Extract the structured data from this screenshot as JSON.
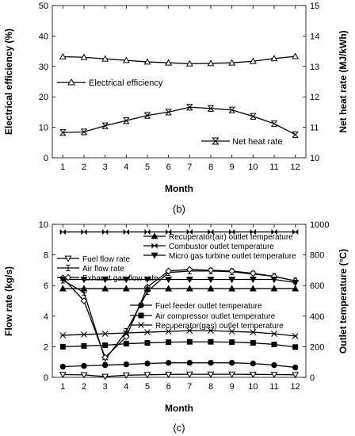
{
  "chart_data": [
    {
      "type": "line",
      "caption": "(b)",
      "xlabel": "Month",
      "ylabel": "Electrical efficiency (%)",
      "ylabel_right": "Net heat rate (MJ/kWh)",
      "x": [
        1,
        2,
        3,
        4,
        5,
        6,
        7,
        8,
        9,
        10,
        11,
        12
      ],
      "xlim": [
        0.5,
        12.5
      ],
      "ylim": [
        0,
        50
      ],
      "ylim_right": [
        10,
        15
      ],
      "yticks": [
        0,
        10,
        20,
        30,
        40,
        50
      ],
      "yticks_right": [
        10,
        11,
        12,
        13,
        14,
        15
      ],
      "grid": false,
      "series": [
        {
          "name": "Electrical efficiency",
          "axis": "left",
          "marker": "triangle-up-open",
          "values": [
            33.2,
            33.0,
            32.5,
            32.0,
            31.5,
            31.2,
            30.9,
            31.0,
            31.2,
            31.7,
            32.6,
            33.3
          ]
        },
        {
          "name": "Net heat rate",
          "axis": "right",
          "marker": "x-bar",
          "values": [
            10.83,
            10.85,
            11.05,
            11.22,
            11.39,
            11.5,
            11.66,
            11.62,
            11.57,
            11.36,
            11.12,
            10.76
          ]
        }
      ]
    },
    {
      "type": "line",
      "caption": "(c)",
      "xlabel": "Month",
      "ylabel": "Flow rate (kg/s)",
      "ylabel_right": "Outlet temperature (°C)",
      "x": [
        1,
        2,
        3,
        4,
        5,
        6,
        7,
        8,
        9,
        10,
        11,
        12
      ],
      "xlim": [
        0.5,
        12.5
      ],
      "ylim": [
        0,
        10
      ],
      "ylim_right": [
        0,
        1000
      ],
      "yticks": [
        0,
        2,
        4,
        6,
        8,
        10
      ],
      "yticks_right": [
        0,
        200,
        400,
        600,
        800,
        1000
      ],
      "grid": false,
      "series": [
        {
          "name": "Fuel flow rate",
          "axis": "left",
          "marker": "triangle-down-open",
          "values": [
            0.18,
            0.16,
            0.05,
            0.14,
            0.17,
            0.19,
            0.2,
            0.2,
            0.2,
            0.19,
            0.18,
            0.17
          ]
        },
        {
          "name": "Air flow rate",
          "axis": "left",
          "marker": "plus-bar",
          "values": [
            6.35,
            5.55,
            1.15,
            3.0,
            5.6,
            6.85,
            6.95,
            6.95,
            6.9,
            6.75,
            6.6,
            6.3
          ]
        },
        {
          "name": "Exhaust gas flow rate",
          "axis": "left",
          "marker": "diamond-open",
          "values": [
            6.5,
            5.0,
            1.3,
            2.65,
            5.9,
            6.95,
            7.05,
            7.0,
            6.95,
            6.8,
            6.6,
            6.3
          ]
        },
        {
          "name": "Recuperator(air) outlet temperature",
          "axis": "right",
          "marker": "triangle-up-filled",
          "values": [
            580,
            580,
            580,
            580,
            580,
            580,
            580,
            580,
            580,
            580,
            580,
            580
          ]
        },
        {
          "name": "Combustor outlet temperature",
          "axis": "right",
          "marker": "bowtie",
          "values": [
            950,
            950,
            950,
            950,
            950,
            950,
            950,
            950,
            950,
            950,
            950,
            950
          ]
        },
        {
          "name": "Micro gas turbine outlet temperature",
          "axis": "right",
          "marker": "triangle-down-filled",
          "values": [
            640,
            640,
            640,
            640,
            640,
            640,
            640,
            640,
            640,
            640,
            640,
            620
          ]
        },
        {
          "name": "Fuel feeder outlet temperature",
          "axis": "right",
          "marker": "circle-filled",
          "values": [
            70,
            75,
            80,
            85,
            90,
            95,
            95,
            95,
            95,
            90,
            80,
            65
          ]
        },
        {
          "name": "Air compressor outlet temperature",
          "axis": "right",
          "marker": "square-filled",
          "values": [
            200,
            205,
            210,
            220,
            225,
            230,
            232,
            232,
            230,
            225,
            215,
            198
          ]
        },
        {
          "name": "Recuperator(gas) outlet temperature",
          "axis": "right",
          "marker": "asterisk",
          "values": [
            275,
            280,
            285,
            290,
            295,
            300,
            305,
            305,
            300,
            295,
            285,
            270
          ]
        }
      ]
    }
  ]
}
